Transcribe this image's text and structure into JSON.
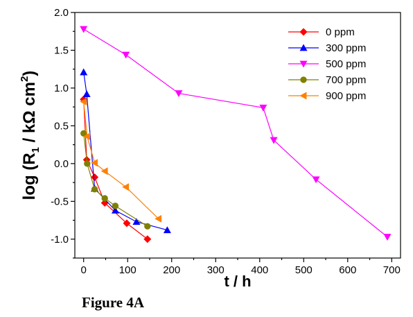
{
  "caption": "Figure 4A",
  "chart_data": {
    "type": "line",
    "title": "",
    "xlabel": "t / h",
    "ylabel_parts": [
      "log (R",
      "1",
      " / kΩ cm",
      "2",
      ")"
    ],
    "xlim": [
      -20,
      720
    ],
    "ylim": [
      -1.25,
      2.0
    ],
    "x_ticks": [
      0,
      100,
      200,
      300,
      400,
      500,
      600,
      700
    ],
    "y_ticks": [
      -1.0,
      -0.5,
      0.0,
      0.5,
      1.0,
      1.5,
      2.0
    ],
    "y_tick_labels": [
      "-1.0",
      "-0.5",
      "0.0",
      "0.5",
      "1.0",
      "1.5",
      "2.0"
    ],
    "grid": false,
    "legend_position": "top-right",
    "series": [
      {
        "name": "0 ppm",
        "color": "#ff0000",
        "marker": "diamond",
        "points": [
          [
            0,
            0.85
          ],
          [
            7,
            0.05
          ],
          [
            25,
            -0.18
          ],
          [
            48,
            -0.52
          ],
          [
            98,
            -0.79
          ],
          [
            145,
            -1.0
          ]
        ]
      },
      {
        "name": "300 ppm",
        "color": "#0000ff",
        "marker": "triangle-up",
        "points": [
          [
            0,
            1.21
          ],
          [
            7,
            0.92
          ],
          [
            25,
            -0.33
          ],
          [
            72,
            -0.62
          ],
          [
            120,
            -0.77
          ],
          [
            190,
            -0.88
          ]
        ]
      },
      {
        "name": "500 ppm",
        "color": "#ff00ff",
        "marker": "triangle-down",
        "points": [
          [
            0,
            1.78
          ],
          [
            96,
            1.44
          ],
          [
            216,
            0.93
          ],
          [
            408,
            0.74
          ],
          [
            432,
            0.31
          ],
          [
            528,
            -0.21
          ],
          [
            690,
            -0.97
          ]
        ]
      },
      {
        "name": "700 ppm",
        "color": "#808000",
        "marker": "circle",
        "points": [
          [
            0,
            0.4
          ],
          [
            8,
            0.0
          ],
          [
            25,
            -0.34
          ],
          [
            48,
            -0.46
          ],
          [
            72,
            -0.56
          ],
          [
            145,
            -0.83
          ]
        ]
      },
      {
        "name": "900 ppm",
        "color": "#ff8000",
        "marker": "triangle-left",
        "points": [
          [
            0,
            0.82
          ],
          [
            8,
            0.36
          ],
          [
            25,
            0.01
          ],
          [
            48,
            -0.1
          ],
          [
            96,
            -0.31
          ],
          [
            170,
            -0.73
          ]
        ]
      }
    ]
  }
}
